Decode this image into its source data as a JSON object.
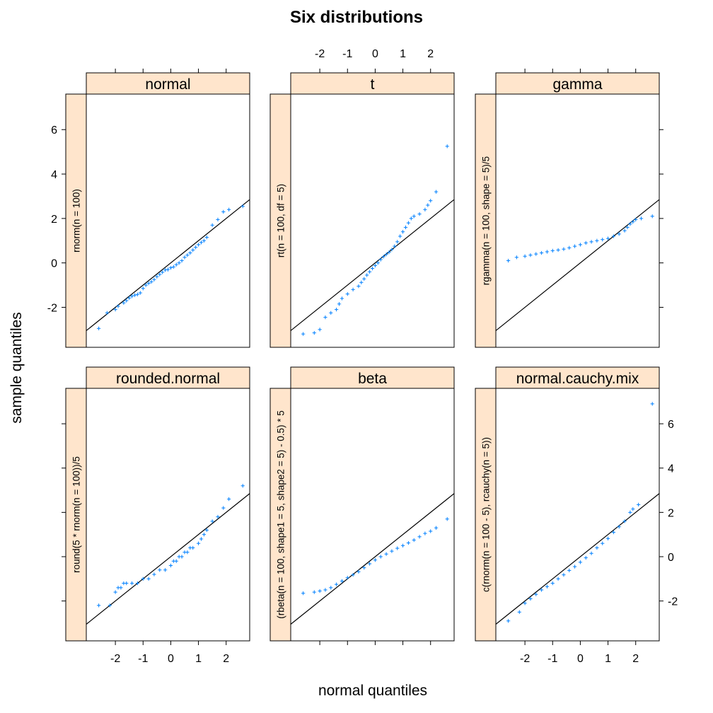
{
  "chart_data": {
    "type": "scatter",
    "title": "Six distributions",
    "xlabel": "normal quantiles",
    "ylabel": "sample quantiles",
    "xlim": [
      -3.05,
      2.85
    ],
    "ylim": [
      -3.8,
      7.6
    ],
    "x_ticks": [
      -2,
      -1,
      0,
      1,
      2
    ],
    "y_ticks": [
      -2,
      0,
      2,
      4,
      6
    ],
    "point_color": "#0080ff",
    "strip_color": "#ffe5cc",
    "reference_line": "y = x",
    "panels": [
      {
        "id": "normal",
        "strip": "normal",
        "ylabel": "rnorm(n = 100)",
        "points": [
          [
            -2.6,
            -2.95
          ],
          [
            -2.3,
            -2.25
          ],
          [
            -2.0,
            -2.1
          ],
          [
            -1.9,
            -1.95
          ],
          [
            -1.7,
            -1.8
          ],
          [
            -1.6,
            -1.7
          ],
          [
            -1.5,
            -1.58
          ],
          [
            -1.4,
            -1.5
          ],
          [
            -1.3,
            -1.45
          ],
          [
            -1.2,
            -1.42
          ],
          [
            -1.1,
            -1.35
          ],
          [
            -1.0,
            -1.15
          ],
          [
            -0.9,
            -1.0
          ],
          [
            -0.8,
            -0.92
          ],
          [
            -0.7,
            -0.85
          ],
          [
            -0.6,
            -0.75
          ],
          [
            -0.5,
            -0.62
          ],
          [
            -0.4,
            -0.52
          ],
          [
            -0.3,
            -0.42
          ],
          [
            -0.2,
            -0.32
          ],
          [
            -0.1,
            -0.3
          ],
          [
            0.0,
            -0.22
          ],
          [
            0.1,
            -0.18
          ],
          [
            0.2,
            -0.08
          ],
          [
            0.3,
            0.0
          ],
          [
            0.4,
            0.1
          ],
          [
            0.5,
            0.25
          ],
          [
            0.6,
            0.35
          ],
          [
            0.7,
            0.45
          ],
          [
            0.8,
            0.58
          ],
          [
            0.9,
            0.7
          ],
          [
            1.0,
            0.82
          ],
          [
            1.1,
            0.92
          ],
          [
            1.2,
            1.0
          ],
          [
            1.3,
            1.15
          ],
          [
            1.5,
            1.7
          ],
          [
            1.7,
            1.95
          ],
          [
            1.9,
            2.3
          ],
          [
            2.1,
            2.4
          ],
          [
            2.6,
            2.55
          ]
        ]
      },
      {
        "id": "t",
        "strip": "t",
        "ylabel": "rt(n = 100, df = 5)",
        "points": [
          [
            -2.6,
            -3.2
          ],
          [
            -2.2,
            -3.15
          ],
          [
            -2.0,
            -3.0
          ],
          [
            -1.8,
            -2.45
          ],
          [
            -1.6,
            -2.25
          ],
          [
            -1.4,
            -2.1
          ],
          [
            -1.3,
            -1.85
          ],
          [
            -1.2,
            -1.6
          ],
          [
            -1.0,
            -1.4
          ],
          [
            -0.8,
            -1.2
          ],
          [
            -0.6,
            -1.05
          ],
          [
            -0.5,
            -0.88
          ],
          [
            -0.4,
            -0.72
          ],
          [
            -0.3,
            -0.55
          ],
          [
            -0.2,
            -0.4
          ],
          [
            -0.1,
            -0.25
          ],
          [
            0.0,
            -0.12
          ],
          [
            0.1,
            0.0
          ],
          [
            0.2,
            0.15
          ],
          [
            0.3,
            0.28
          ],
          [
            0.4,
            0.38
          ],
          [
            0.5,
            0.48
          ],
          [
            0.6,
            0.6
          ],
          [
            0.7,
            0.75
          ],
          [
            0.8,
            0.95
          ],
          [
            0.9,
            1.2
          ],
          [
            1.0,
            1.4
          ],
          [
            1.1,
            1.6
          ],
          [
            1.2,
            1.8
          ],
          [
            1.3,
            2.0
          ],
          [
            1.4,
            2.1
          ],
          [
            1.6,
            2.2
          ],
          [
            1.8,
            2.4
          ],
          [
            1.9,
            2.6
          ],
          [
            2.0,
            2.8
          ],
          [
            2.2,
            3.2
          ],
          [
            2.6,
            5.25
          ]
        ]
      },
      {
        "id": "gamma",
        "strip": "gamma",
        "ylabel": "rgamma(n = 100, shape = 5)/5",
        "points": [
          [
            -2.6,
            0.1
          ],
          [
            -2.3,
            0.25
          ],
          [
            -2.0,
            0.3
          ],
          [
            -1.8,
            0.35
          ],
          [
            -1.6,
            0.4
          ],
          [
            -1.4,
            0.45
          ],
          [
            -1.2,
            0.5
          ],
          [
            -1.0,
            0.55
          ],
          [
            -0.8,
            0.58
          ],
          [
            -0.6,
            0.62
          ],
          [
            -0.4,
            0.68
          ],
          [
            -0.2,
            0.75
          ],
          [
            0.0,
            0.82
          ],
          [
            0.2,
            0.9
          ],
          [
            0.4,
            0.95
          ],
          [
            0.6,
            1.0
          ],
          [
            0.8,
            1.05
          ],
          [
            1.0,
            1.1
          ],
          [
            1.2,
            1.2
          ],
          [
            1.4,
            1.3
          ],
          [
            1.6,
            1.45
          ],
          [
            1.7,
            1.6
          ],
          [
            1.8,
            1.75
          ],
          [
            1.9,
            1.85
          ],
          [
            2.0,
            1.95
          ],
          [
            2.2,
            2.0
          ],
          [
            2.6,
            2.1
          ]
        ]
      },
      {
        "id": "rounded.normal",
        "strip": "rounded.normal",
        "ylabel": "round(5 * rnorm(n = 100))/5",
        "points": [
          [
            -2.6,
            -2.2
          ],
          [
            -2.2,
            -2.2
          ],
          [
            -2.0,
            -1.6
          ],
          [
            -1.9,
            -1.4
          ],
          [
            -1.8,
            -1.4
          ],
          [
            -1.7,
            -1.2
          ],
          [
            -1.6,
            -1.2
          ],
          [
            -1.4,
            -1.2
          ],
          [
            -1.2,
            -1.2
          ],
          [
            -1.0,
            -1.0
          ],
          [
            -0.8,
            -1.0
          ],
          [
            -0.6,
            -0.8
          ],
          [
            -0.4,
            -0.6
          ],
          [
            -0.2,
            -0.6
          ],
          [
            0.0,
            -0.4
          ],
          [
            0.1,
            -0.2
          ],
          [
            0.2,
            -0.2
          ],
          [
            0.3,
            0.0
          ],
          [
            0.4,
            0.0
          ],
          [
            0.5,
            0.2
          ],
          [
            0.6,
            0.2
          ],
          [
            0.7,
            0.4
          ],
          [
            0.8,
            0.4
          ],
          [
            1.0,
            0.6
          ],
          [
            1.1,
            0.8
          ],
          [
            1.2,
            1.0
          ],
          [
            1.3,
            1.2
          ],
          [
            1.5,
            1.6
          ],
          [
            1.7,
            1.8
          ],
          [
            1.9,
            2.2
          ],
          [
            2.1,
            2.6
          ],
          [
            2.6,
            3.2
          ]
        ]
      },
      {
        "id": "beta",
        "strip": "beta",
        "ylabel": "(rbeta(n = 100, shape1 = 5, shape2 = 5) - 0.5) * 5",
        "points": [
          [
            -2.6,
            -1.65
          ],
          [
            -2.2,
            -1.6
          ],
          [
            -2.0,
            -1.55
          ],
          [
            -1.8,
            -1.5
          ],
          [
            -1.6,
            -1.4
          ],
          [
            -1.4,
            -1.25
          ],
          [
            -1.2,
            -1.1
          ],
          [
            -1.0,
            -0.95
          ],
          [
            -0.8,
            -0.82
          ],
          [
            -0.6,
            -0.68
          ],
          [
            -0.4,
            -0.5
          ],
          [
            -0.2,
            -0.32
          ],
          [
            0.0,
            -0.15
          ],
          [
            0.2,
            0.0
          ],
          [
            0.4,
            0.12
          ],
          [
            0.6,
            0.25
          ],
          [
            0.8,
            0.38
          ],
          [
            1.0,
            0.5
          ],
          [
            1.2,
            0.62
          ],
          [
            1.4,
            0.75
          ],
          [
            1.6,
            0.9
          ],
          [
            1.8,
            1.05
          ],
          [
            2.0,
            1.15
          ],
          [
            2.2,
            1.3
          ],
          [
            2.6,
            1.7
          ]
        ]
      },
      {
        "id": "normal.cauchy.mix",
        "strip": "normal.cauchy.mix",
        "ylabel": "c(rnorm(n = 100 - 5), rcauchy(n = 5))",
        "points": [
          [
            -2.6,
            -2.9
          ],
          [
            -2.2,
            -2.5
          ],
          [
            -2.0,
            -2.1
          ],
          [
            -1.8,
            -1.9
          ],
          [
            -1.6,
            -1.7
          ],
          [
            -1.4,
            -1.5
          ],
          [
            -1.2,
            -1.35
          ],
          [
            -1.0,
            -1.2
          ],
          [
            -0.8,
            -1.0
          ],
          [
            -0.6,
            -0.82
          ],
          [
            -0.4,
            -0.62
          ],
          [
            -0.2,
            -0.45
          ],
          [
            0.0,
            -0.25
          ],
          [
            0.2,
            -0.05
          ],
          [
            0.4,
            0.15
          ],
          [
            0.6,
            0.4
          ],
          [
            0.8,
            0.6
          ],
          [
            1.0,
            0.82
          ],
          [
            1.2,
            1.1
          ],
          [
            1.4,
            1.35
          ],
          [
            1.6,
            1.6
          ],
          [
            1.8,
            2.0
          ],
          [
            1.9,
            2.15
          ],
          [
            2.1,
            2.35
          ],
          [
            2.6,
            6.9
          ]
        ]
      }
    ]
  }
}
